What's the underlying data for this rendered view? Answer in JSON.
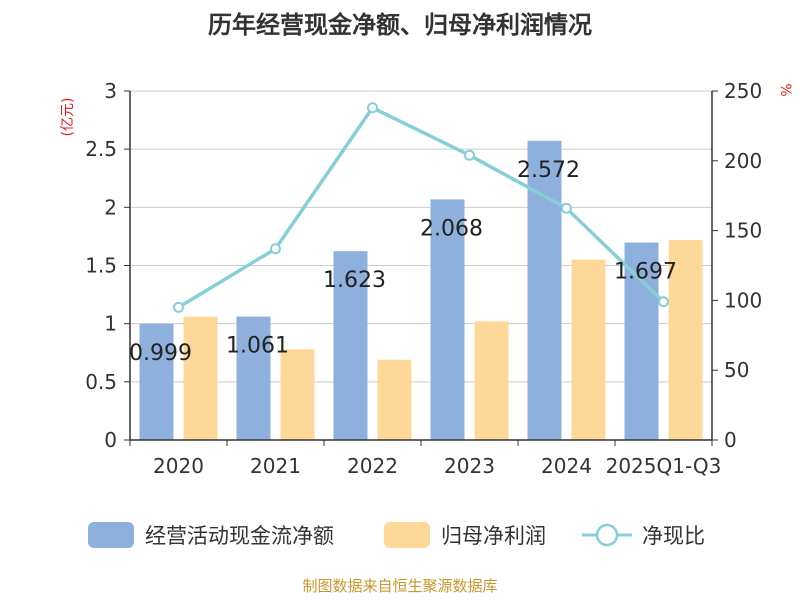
{
  "chart_data": {
    "type": "bar",
    "title": "历年经营现金净额、归母净利润情况",
    "ylabel_left": "(亿元)",
    "ylabel_right": "%",
    "categories": [
      "2020",
      "2021",
      "2022",
      "2023",
      "2024",
      "2025Q1-Q3"
    ],
    "ylim_left": [
      0,
      3
    ],
    "yticks_left": [
      "0",
      "0.5",
      "1",
      "1.5",
      "2",
      "2.5",
      "3"
    ],
    "ylim_right": [
      0,
      250
    ],
    "yticks_right": [
      "0",
      "50",
      "100",
      "150",
      "200",
      "250"
    ],
    "series": [
      {
        "name": "经营活动现金流净额",
        "type": "bar",
        "axis": "left",
        "values": [
          0.999,
          1.061,
          1.623,
          2.068,
          2.572,
          1.697
        ],
        "labels": [
          "0.999",
          "1.061",
          "1.623",
          "2.068",
          "2.572",
          "1.697"
        ],
        "color": "#8eb0dc"
      },
      {
        "name": "归母净利润",
        "type": "bar",
        "axis": "left",
        "values": [
          1.06,
          0.78,
          0.69,
          1.02,
          1.55,
          1.72
        ],
        "color": "#fdd898"
      },
      {
        "name": "净现比",
        "type": "line",
        "axis": "right",
        "values": [
          95,
          137,
          238,
          204,
          166,
          99
        ],
        "color": "#86cfd8"
      }
    ],
    "grid": true,
    "legend_position": "bottom"
  },
  "footer": {
    "source": "制图数据来自恒生聚源数据库"
  }
}
